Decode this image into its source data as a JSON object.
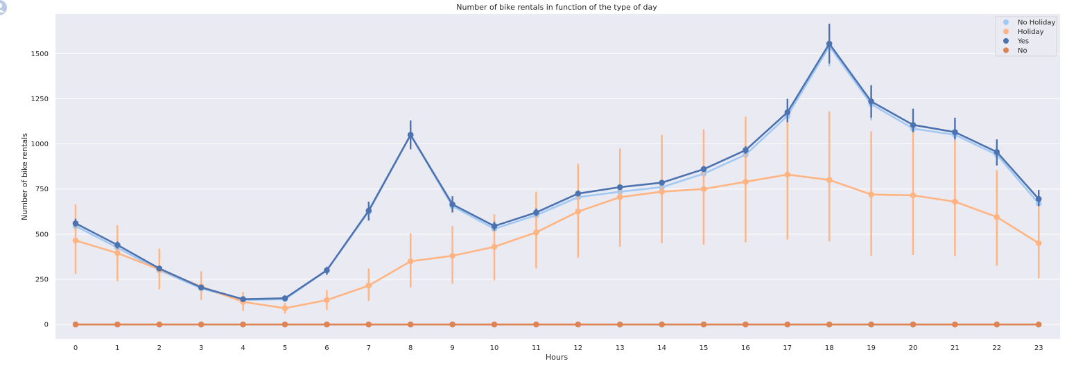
{
  "chart_data": {
    "type": "line",
    "title": "Number of bike rentals in function of the type of day",
    "xlabel": "Hours",
    "ylabel": "Number of bike rentals",
    "categories": [
      "0",
      "1",
      "2",
      "3",
      "4",
      "5",
      "6",
      "7",
      "8",
      "9",
      "10",
      "11",
      "12",
      "13",
      "14",
      "15",
      "16",
      "17",
      "18",
      "19",
      "20",
      "21",
      "22",
      "23"
    ],
    "ylim": [
      -80,
      1720
    ],
    "yticks": [
      0,
      250,
      500,
      750,
      1000,
      1250,
      1500
    ],
    "grid": true,
    "legend_position": "top-right",
    "series": [
      {
        "name": "No Holiday",
        "color": "#a1c9f4",
        "values": [
          545,
          425,
          300,
          200,
          135,
          140,
          300,
          625,
          1050,
          655,
          530,
          605,
          705,
          735,
          760,
          835,
          940,
          1155,
          1540,
          1220,
          1085,
          1050,
          940,
          670
        ],
        "err_low": [
          520,
          405,
          285,
          190,
          128,
          130,
          285,
          590,
          990,
          625,
          510,
          585,
          690,
          720,
          745,
          818,
          920,
          1125,
          1430,
          1130,
          1045,
          1010,
          890,
          650
        ],
        "err_high": [
          570,
          445,
          315,
          212,
          142,
          150,
          315,
          665,
          1110,
          690,
          550,
          625,
          722,
          752,
          778,
          852,
          960,
          1190,
          1640,
          1305,
          1125,
          1090,
          990,
          690
        ]
      },
      {
        "name": "Holiday",
        "color": "#ffb482",
        "values": [
          465,
          395,
          305,
          210,
          125,
          90,
          135,
          215,
          350,
          380,
          430,
          510,
          625,
          705,
          735,
          750,
          790,
          830,
          800,
          720,
          715,
          680,
          595,
          450
        ],
        "err_low": [
          280,
          240,
          195,
          135,
          75,
          60,
          80,
          130,
          205,
          225,
          245,
          310,
          370,
          430,
          450,
          440,
          455,
          470,
          460,
          380,
          385,
          380,
          325,
          255
        ],
        "err_high": [
          665,
          550,
          420,
          295,
          180,
          120,
          190,
          310,
          505,
          545,
          610,
          735,
          890,
          975,
          1050,
          1080,
          1150,
          1190,
          1180,
          1070,
          1090,
          1020,
          855,
          670
        ]
      },
      {
        "name": "Yes",
        "color": "#4c72b0",
        "values": [
          560,
          440,
          310,
          205,
          140,
          145,
          300,
          630,
          1050,
          665,
          545,
          620,
          725,
          760,
          785,
          860,
          965,
          1175,
          1555,
          1235,
          1105,
          1065,
          955,
          695
        ],
        "err_low": [
          540,
          420,
          298,
          198,
          134,
          136,
          275,
          575,
          970,
          620,
          520,
          600,
          710,
          745,
          770,
          845,
          945,
          1120,
          1445,
          1145,
          1065,
          1025,
          880,
          655
        ],
        "err_high": [
          585,
          460,
          322,
          214,
          146,
          156,
          320,
          680,
          1130,
          710,
          570,
          642,
          742,
          775,
          800,
          877,
          987,
          1250,
          1665,
          1325,
          1195,
          1145,
          1025,
          745
        ]
      },
      {
        "name": "No",
        "color": "#dd8452",
        "values": [
          0,
          0,
          0,
          0,
          0,
          0,
          0,
          0,
          0,
          0,
          0,
          0,
          0,
          0,
          0,
          0,
          0,
          0,
          0,
          0,
          0,
          0,
          0,
          0
        ]
      }
    ]
  }
}
